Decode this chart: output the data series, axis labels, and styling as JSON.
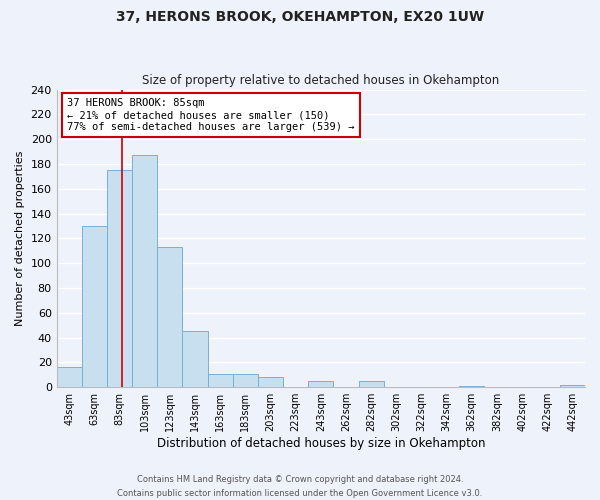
{
  "title": "37, HERONS BROOK, OKEHAMPTON, EX20 1UW",
  "subtitle": "Size of property relative to detached houses in Okehampton",
  "xlabel": "Distribution of detached houses by size in Okehampton",
  "ylabel": "Number of detached properties",
  "bin_labels": [
    "43sqm",
    "63sqm",
    "83sqm",
    "103sqm",
    "123sqm",
    "143sqm",
    "163sqm",
    "183sqm",
    "203sqm",
    "223sqm",
    "243sqm",
    "262sqm",
    "282sqm",
    "302sqm",
    "322sqm",
    "342sqm",
    "362sqm",
    "382sqm",
    "402sqm",
    "422sqm",
    "442sqm"
  ],
  "bar_values": [
    16,
    130,
    175,
    187,
    113,
    45,
    11,
    11,
    8,
    0,
    5,
    0,
    5,
    0,
    0,
    0,
    1,
    0,
    0,
    0,
    2
  ],
  "bar_color": "#c8dff0",
  "bar_edge_color": "#7aafd4",
  "ylim": [
    0,
    240
  ],
  "yticks": [
    0,
    20,
    40,
    60,
    80,
    100,
    120,
    140,
    160,
    180,
    200,
    220,
    240
  ],
  "annotation_title": "37 HERONS BROOK: 85sqm",
  "annotation_line1": "← 21% of detached houses are smaller (150)",
  "annotation_line2": "77% of semi-detached houses are larger (539) →",
  "annotation_box_color": "#ffffff",
  "annotation_box_edge_color": "#cc0000",
  "vline_color": "#cc0000",
  "footer1": "Contains HM Land Registry data © Crown copyright and database right 2024.",
  "footer2": "Contains public sector information licensed under the Open Government Licence v3.0.",
  "background_color": "#eef2fb",
  "grid_color": "#ffffff"
}
